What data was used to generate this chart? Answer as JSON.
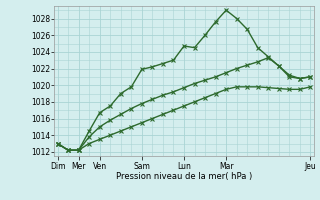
{
  "background_color": "#d4eeee",
  "grid_color": "#aad4d4",
  "line_color": "#2d6a2d",
  "xlabel": "Pression niveau de la mer( hPa )",
  "ylim": [
    1011.5,
    1029.5
  ],
  "ytick_vals": [
    1012,
    1014,
    1016,
    1018,
    1020,
    1022,
    1024,
    1026,
    1028
  ],
  "major_xlabels": [
    "Dim",
    "Mer",
    "Ven",
    "Sam",
    "Lun",
    "Mar",
    "Jeu"
  ],
  "major_xtick_pos": [
    0,
    2,
    4,
    8,
    12,
    16,
    24
  ],
  "series1_x": [
    0,
    1,
    2,
    3,
    4,
    5,
    6,
    7,
    8,
    9,
    10,
    11,
    12,
    13,
    14,
    15,
    16,
    17,
    18,
    19,
    20,
    21,
    22,
    23,
    24
  ],
  "series1_y": [
    1013.0,
    1012.2,
    1012.2,
    1014.5,
    1016.7,
    1017.5,
    1019.0,
    1019.8,
    1021.9,
    1022.2,
    1022.6,
    1023.0,
    1024.7,
    1024.5,
    1026.0,
    1027.6,
    1029.0,
    1028.0,
    1026.7,
    1024.5,
    1023.4,
    1022.3,
    1021.0,
    1020.8,
    1021.0
  ],
  "series2_x": [
    0,
    1,
    2,
    3,
    4,
    5,
    6,
    7,
    8,
    9,
    10,
    11,
    12,
    13,
    14,
    15,
    16,
    17,
    18,
    19,
    20,
    21,
    22,
    23,
    24
  ],
  "series2_y": [
    1013.0,
    1012.2,
    1012.2,
    1013.8,
    1015.0,
    1015.8,
    1016.5,
    1017.2,
    1017.8,
    1018.3,
    1018.8,
    1019.2,
    1019.7,
    1020.2,
    1020.6,
    1021.0,
    1021.5,
    1022.0,
    1022.4,
    1022.8,
    1023.3,
    1022.3,
    1021.2,
    1020.8,
    1021.0
  ],
  "series3_x": [
    0,
    1,
    2,
    3,
    4,
    5,
    6,
    7,
    8,
    9,
    10,
    11,
    12,
    13,
    14,
    15,
    16,
    17,
    18,
    19,
    20,
    21,
    22,
    23,
    24
  ],
  "series3_y": [
    1013.0,
    1012.2,
    1012.2,
    1013.0,
    1013.5,
    1014.0,
    1014.5,
    1015.0,
    1015.5,
    1016.0,
    1016.5,
    1017.0,
    1017.5,
    1018.0,
    1018.5,
    1019.0,
    1019.5,
    1019.8,
    1019.8,
    1019.8,
    1019.7,
    1019.6,
    1019.5,
    1019.5,
    1019.8
  ],
  "marker_size": 2.5,
  "line_width": 1.0
}
